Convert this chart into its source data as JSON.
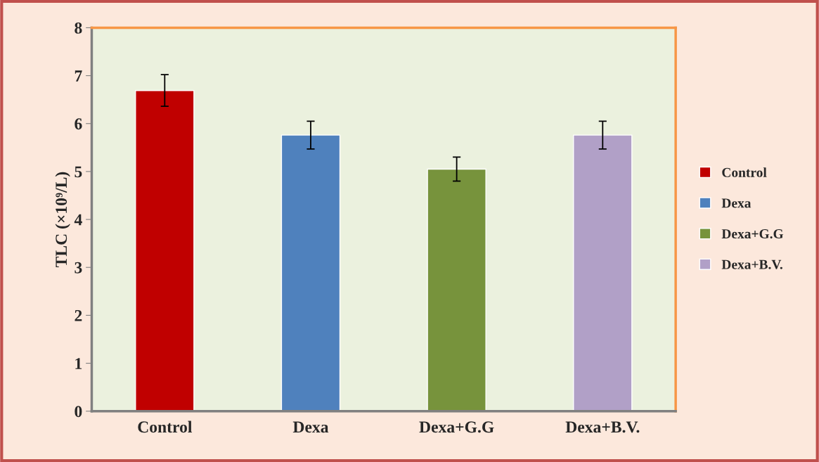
{
  "chart_data": {
    "type": "bar",
    "categories": [
      "Control",
      "Dexa",
      "Dexa+G.G",
      "Dexa+B.V."
    ],
    "series": [
      {
        "name": "Control",
        "color": "#c00000",
        "values": [
          6.69,
          null,
          null,
          null
        ],
        "errors": [
          0.33,
          null,
          null,
          null
        ]
      },
      {
        "name": "Dexa",
        "color": "#4f81bd",
        "values": [
          null,
          5.76,
          null,
          null
        ],
        "errors": [
          null,
          0.29,
          null,
          null
        ]
      },
      {
        "name": "Dexa+G.G",
        "color": "#77933c",
        "values": [
          null,
          null,
          5.05,
          null
        ],
        "errors": [
          null,
          null,
          0.25,
          null
        ]
      },
      {
        "name": "Dexa+B.V.",
        "color": "#b1a0c7",
        "values": [
          null,
          null,
          null,
          5.76
        ],
        "errors": [
          null,
          null,
          null,
          0.29
        ]
      }
    ],
    "ylabel": "TLC (×10⁹/L)",
    "ylim": [
      0,
      8
    ],
    "yticks": [
      0,
      1,
      2,
      3,
      4,
      5,
      6,
      7,
      8
    ],
    "grid": false,
    "legend": "right"
  }
}
